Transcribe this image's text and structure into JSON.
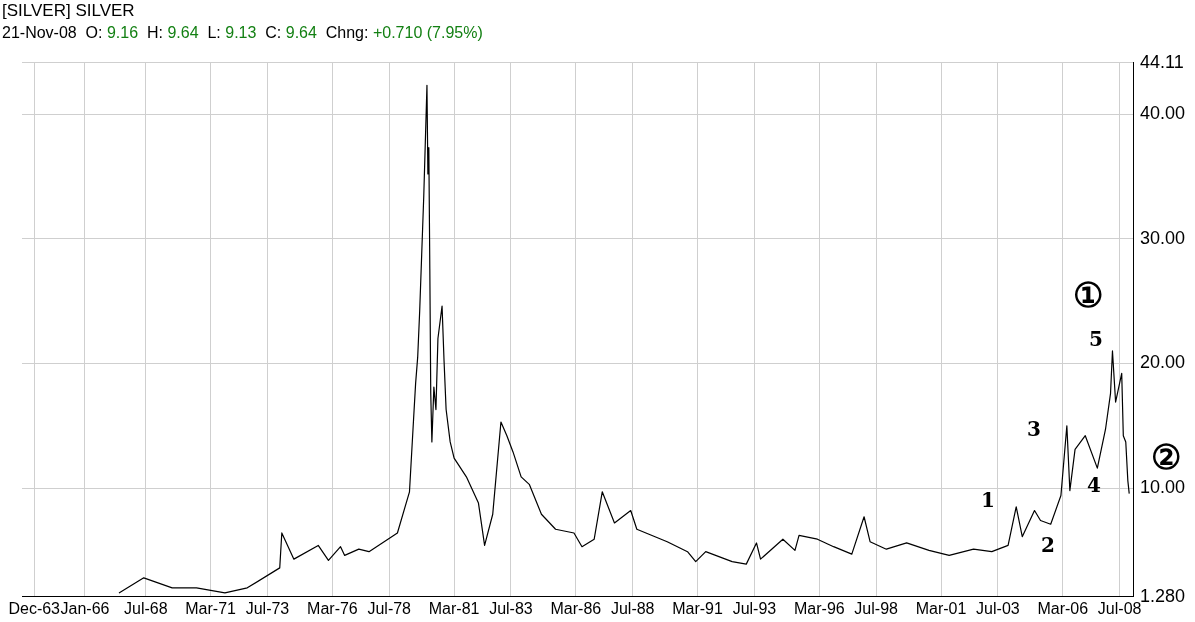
{
  "chart_data": {
    "type": "line",
    "title": "[SILVER] SILVER",
    "subtitle": "21-Nov-08  O: 9.16  H: 9.64  L: 9.13  C: 9.64  Chng: +0.710 (7.95%)",
    "series": [
      {
        "color": "#000000",
        "x": [
          "1967-06-01",
          "1968-06-01",
          "1969-08-01",
          "1970-08-01",
          "1971-10-01",
          "1972-09-01",
          "1974-01-01",
          "1974-02-01",
          "1974-08-01",
          "1975-08-01",
          "1976-01-01",
          "1976-07-01",
          "1976-09-01",
          "1977-04-01",
          "1977-09-01",
          "1978-11-01",
          "1979-05-01",
          "1979-07-01",
          "1979-08-01",
          "1979-09-01",
          "1979-10-01",
          "1979-12-01",
          "1980-01-18",
          "1980-02-01",
          "1980-02-15",
          "1980-03-01",
          "1980-03-15",
          "1980-04-01",
          "1980-05-01",
          "1980-06-01",
          "1980-07-01",
          "1980-09-01",
          "1980-10-01",
          "1980-11-01",
          "1981-01-01",
          "1981-03-01",
          "1981-09-01",
          "1982-03-01",
          "1982-06-01",
          "1982-10-01",
          "1983-02-01",
          "1983-05-01",
          "1983-08-01",
          "1983-12-01",
          "1984-04-01",
          "1984-10-01",
          "1985-05-01",
          "1986-02-01",
          "1986-06-01",
          "1986-12-01",
          "1987-04-01",
          "1987-10-01",
          "1988-06-01",
          "1988-09-01",
          "1989-12-01",
          "1990-10-01",
          "1991-02-01",
          "1991-07-01",
          "1992-08-01",
          "1993-03-01",
          "1993-08-01",
          "1993-10-01",
          "1994-09-01",
          "1995-03-01",
          "1995-05-01",
          "1996-02-01",
          "1996-10-01",
          "1997-07-01",
          "1998-01-01",
          "1998-04-01",
          "1998-12-01",
          "1999-10-01",
          "2000-09-01",
          "2001-07-01",
          "2002-07-01",
          "2003-04-01",
          "2003-12-01",
          "2004-04-01",
          "2004-07-01",
          "2005-01-01",
          "2005-04-01",
          "2005-09-01",
          "2006-02-01",
          "2006-05-01",
          "2006-06-15",
          "2006-09-01",
          "2007-02-01",
          "2007-08-01",
          "2007-12-01",
          "2008-02-15",
          "2008-03-15",
          "2008-05-01",
          "2008-08-01",
          "2008-08-25",
          "2008-10-01",
          "2008-11-01",
          "2008-11-21"
        ],
        "values": [
          1.6,
          2.8,
          2.0,
          2.0,
          1.6,
          2.0,
          3.6,
          6.4,
          4.3,
          5.4,
          4.2,
          5.3,
          4.6,
          5.1,
          4.9,
          6.4,
          9.7,
          15.5,
          18.4,
          20.5,
          24.2,
          33.4,
          42.3,
          35.2,
          37.3,
          27.6,
          17.6,
          13.7,
          18.1,
          16.3,
          22.0,
          24.6,
          20.2,
          16.3,
          13.7,
          12.4,
          10.9,
          8.8,
          5.4,
          7.9,
          15.3,
          14.2,
          12.9,
          10.9,
          10.3,
          7.9,
          6.7,
          6.4,
          5.3,
          5.9,
          9.7,
          7.2,
          8.2,
          6.7,
          5.7,
          4.9,
          4.1,
          4.9,
          4.1,
          3.9,
          5.6,
          4.3,
          5.9,
          5.0,
          6.2,
          5.9,
          5.3,
          4.7,
          7.7,
          5.7,
          5.1,
          5.6,
          5.0,
          4.6,
          5.1,
          4.9,
          5.4,
          8.5,
          6.1,
          8.2,
          7.4,
          7.1,
          9.4,
          15.0,
          9.8,
          13.1,
          14.2,
          11.6,
          14.7,
          17.6,
          21.0,
          16.9,
          19.2,
          14.2,
          13.7,
          10.6,
          9.6
        ]
      }
    ],
    "xlim": [
      "1963-06",
      "2009-02"
    ],
    "xticks": [
      {
        "value": "1963-12",
        "label": "Dec-63"
      },
      {
        "value": "1966-01",
        "label": "Jan-66"
      },
      {
        "value": "1968-07",
        "label": "Jul-68"
      },
      {
        "value": "1971-03",
        "label": "Mar-71"
      },
      {
        "value": "1973-07",
        "label": "Jul-73"
      },
      {
        "value": "1976-03",
        "label": "Mar-76"
      },
      {
        "value": "1978-07",
        "label": "Jul-78"
      },
      {
        "value": "1981-03",
        "label": "Mar-81"
      },
      {
        "value": "1983-07",
        "label": "Jul-83"
      },
      {
        "value": "1986-03",
        "label": "Mar-86"
      },
      {
        "value": "1988-07",
        "label": "Jul-88"
      },
      {
        "value": "1991-03",
        "label": "Mar-91"
      },
      {
        "value": "1993-07",
        "label": "Jul-93"
      },
      {
        "value": "1996-03",
        "label": "Mar-96"
      },
      {
        "value": "1998-07",
        "label": "Jul-98"
      },
      {
        "value": "2001-03",
        "label": "Mar-01"
      },
      {
        "value": "2003-07",
        "label": "Jul-03"
      },
      {
        "value": "2006-03",
        "label": "Mar-06"
      },
      {
        "value": "2008-07",
        "label": "Jul-08"
      }
    ],
    "ylim": [
      1.28,
      44.11
    ],
    "yticks": [
      {
        "value": 1.28,
        "label": "1.280"
      },
      {
        "value": 10,
        "label": "10.00"
      },
      {
        "value": 20,
        "label": "20.00"
      },
      {
        "value": 30,
        "label": "30.00"
      },
      {
        "value": 40,
        "label": "40.00"
      },
      {
        "value": 44.11,
        "label": "44.11"
      }
    ],
    "grid": true,
    "legend": false,
    "marker": "none",
    "line_style": "solid",
    "annotations": [
      "1",
      "2",
      "3",
      "4",
      "5",
      "①",
      "②"
    ]
  }
}
